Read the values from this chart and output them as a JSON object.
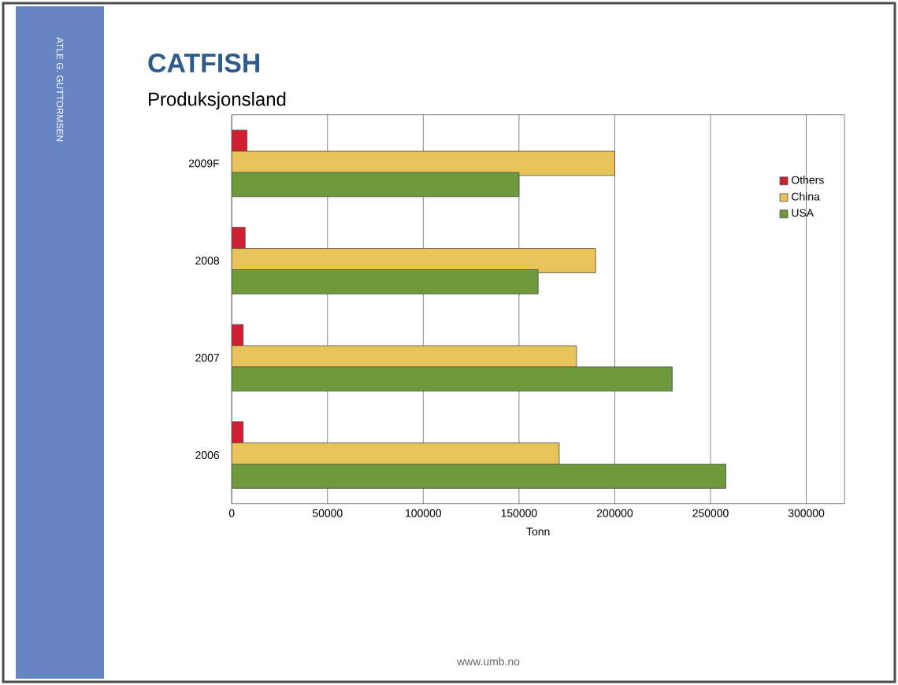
{
  "chart_data": {
    "type": "bar",
    "orientation": "horizontal",
    "title": "CATFISH",
    "subtitle": "Produksjonsland",
    "xlabel": "Tonn",
    "categories": [
      "2009F",
      "2008",
      "2007",
      "2006"
    ],
    "series": [
      {
        "name": "Others",
        "color": "#d02030",
        "values": [
          8000,
          7000,
          6000,
          6000
        ]
      },
      {
        "name": "China",
        "color": "#e8c35a",
        "values": [
          200000,
          190000,
          180000,
          171000
        ]
      },
      {
        "name": "USA",
        "color": "#6e9a3c",
        "values": [
          150000,
          160000,
          230000,
          258000
        ]
      }
    ],
    "xlim": [
      0,
      320000
    ],
    "xticks": [
      0,
      50000,
      100000,
      150000,
      200000,
      250000,
      300000
    ],
    "grid": "x",
    "legend": "right",
    "annotations": [
      "ATLE G. GUTTORMSEN",
      "www.umb.no"
    ]
  }
}
